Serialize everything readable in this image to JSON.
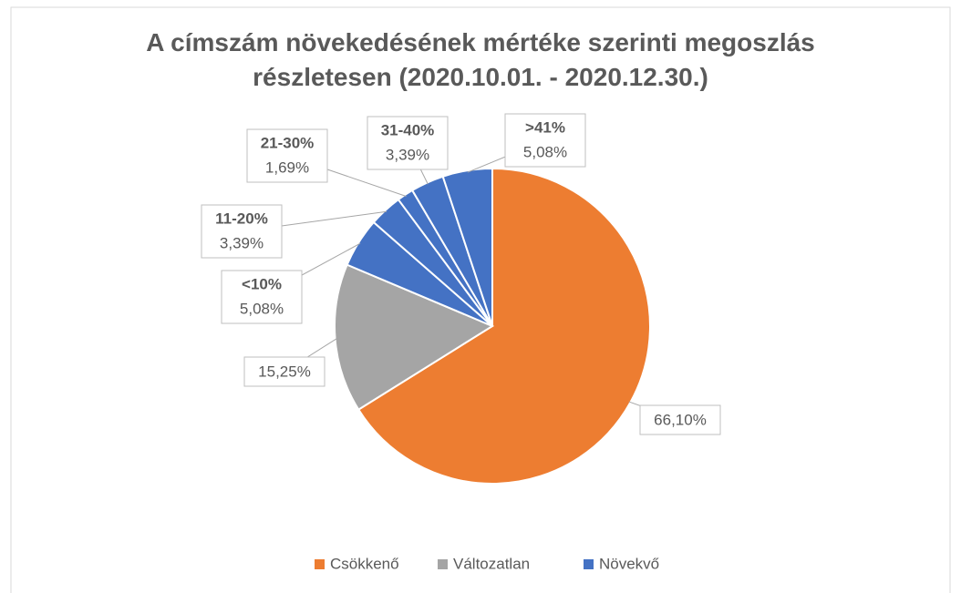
{
  "chart_data": {
    "type": "pie",
    "title": "A címszám növekedésének mértéke szerinti megoszlás részletesen (2020.10.01. - 2020.12.30.)",
    "categories": [
      null,
      null,
      "<10%",
      "11-20%",
      "21-30%",
      "31-40%",
      ">41%"
    ],
    "values": [
      66.1,
      15.25,
      5.08,
      3.39,
      1.69,
      3.39,
      5.08
    ],
    "value_labels": [
      "66,10%",
      "15,25%",
      "5,08%",
      "3,39%",
      "1,69%",
      "3,39%",
      "5,08%"
    ],
    "colors": [
      "#ed7d31",
      "#a5a5a5",
      "#4472c4",
      "#4472c4",
      "#4472c4",
      "#4472c4",
      "#4472c4"
    ],
    "legend": [
      {
        "name": "Csökkenő",
        "color": "#ed7d31"
      },
      {
        "name": "Változatlan",
        "color": "#a5a5a5"
      },
      {
        "name": "Növekvő",
        "color": "#4472c4"
      }
    ]
  }
}
